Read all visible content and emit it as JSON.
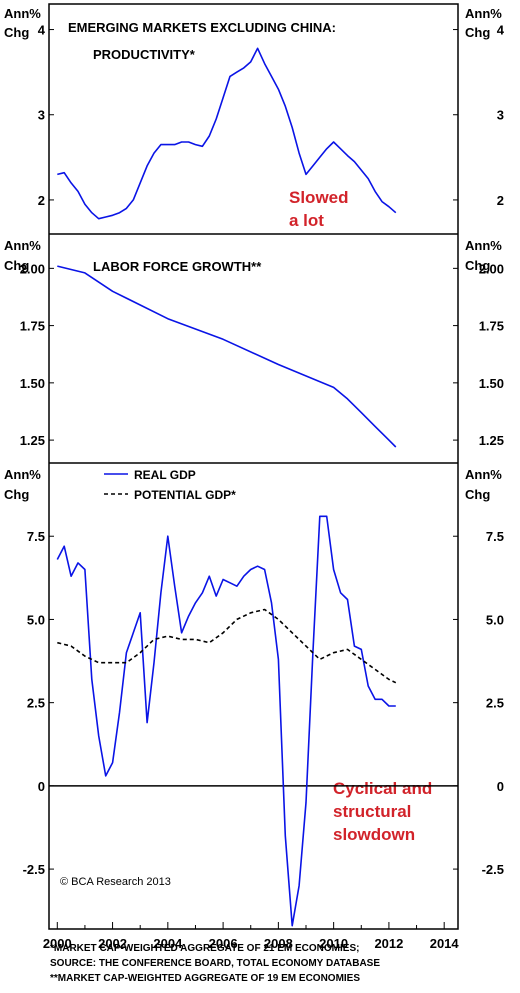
{
  "colors": {
    "series": "#0a14e6",
    "potential": "#000000",
    "annotation": "#d2232a",
    "frame": "#000000"
  },
  "y_unit_line1": "Ann%",
  "y_unit_line2": "Chg",
  "x_tick_labels": [
    "2000",
    "2002",
    "2004",
    "2006",
    "2008",
    "2010",
    "2012",
    "2014"
  ],
  "copyright": "© BCA Research 2013",
  "footnotes": [
    "*MARKET CAP-WEIGHTED AGGREGATE OF 21 EM ECONOMIES;",
    "SOURCE: THE CONFERENCE BOARD, TOTAL ECONOMY DATABASE",
    "**MARKET CAP-WEIGHTED AGGREGATE OF 19 EM ECONOMIES"
  ],
  "chart_data": [
    {
      "type": "line",
      "title": "EMERGING MARKETS EXCLUDING CHINA:",
      "subtitle": "PRODUCTIVITY*",
      "annotation": [
        "Slowed",
        "a lot"
      ],
      "ylim": [
        1.6,
        4.3
      ],
      "yticks": [
        2,
        3,
        4
      ],
      "ytick_labels": [
        "2",
        "3",
        "4"
      ],
      "xlim": [
        1999.7,
        2014.5
      ],
      "grid": false,
      "series": [
        {
          "x": [
            2000.0,
            2000.25,
            2000.5,
            2000.75,
            2001.0,
            2001.25,
            2001.5,
            2001.75,
            2002.0,
            2002.25,
            2002.5,
            2002.75,
            2003.0,
            2003.25,
            2003.5,
            2003.75,
            2004.0,
            2004.25,
            2004.5,
            2004.75,
            2005.0,
            2005.25,
            2005.5,
            2005.75,
            2006.0,
            2006.25,
            2006.5,
            2006.75,
            2007.0,
            2007.25,
            2007.5,
            2007.75,
            2008.0,
            2008.25,
            2008.5,
            2008.75,
            2009.0,
            2009.25,
            2009.5,
            2009.75,
            2010.0,
            2010.25,
            2010.5,
            2010.75,
            2011.0,
            2011.25,
            2011.5,
            2011.75,
            2012.0,
            2012.25
          ],
          "values": [
            2.3,
            2.32,
            2.2,
            2.1,
            1.95,
            1.85,
            1.78,
            1.8,
            1.82,
            1.85,
            1.9,
            2.0,
            2.2,
            2.4,
            2.55,
            2.65,
            2.65,
            2.65,
            2.68,
            2.68,
            2.65,
            2.63,
            2.75,
            2.95,
            3.2,
            3.45,
            3.5,
            3.55,
            3.62,
            3.78,
            3.6,
            3.45,
            3.3,
            3.1,
            2.85,
            2.55,
            2.3,
            2.4,
            2.5,
            2.6,
            2.68,
            2.6,
            2.52,
            2.45,
            2.35,
            2.25,
            2.1,
            1.98,
            1.92,
            1.85
          ]
        }
      ]
    },
    {
      "type": "line",
      "title": "LABOR FORCE GROWTH**",
      "ylim": [
        1.15,
        2.15
      ],
      "yticks": [
        1.25,
        1.5,
        1.75,
        2.0
      ],
      "ytick_labels": [
        "1.25",
        "1.50",
        "1.75",
        "2.00"
      ],
      "xlim": [
        1999.7,
        2014.5
      ],
      "grid": false,
      "series": [
        {
          "x": [
            2000.0,
            2001.0,
            2002.0,
            2004.0,
            2006.0,
            2008.0,
            2010.0,
            2010.5,
            2011.0,
            2011.5,
            2012.0,
            2012.25
          ],
          "values": [
            2.01,
            1.98,
            1.9,
            1.78,
            1.69,
            1.58,
            1.48,
            1.43,
            1.37,
            1.31,
            1.25,
            1.22
          ]
        }
      ]
    },
    {
      "type": "line",
      "ylim": [
        -4.3,
        9.7
      ],
      "yticks": [
        -2.5,
        0,
        2.5,
        5.0,
        7.5
      ],
      "ytick_labels": [
        "-2.5",
        "0",
        "2.5",
        "5.0",
        "7.5"
      ],
      "xlim": [
        1999.7,
        2014.5
      ],
      "grid": false,
      "annotation": [
        "Cyclical and",
        "structural",
        "slowdown"
      ],
      "legend_position": "top-left",
      "series": [
        {
          "name": "REAL GDP",
          "style": "solid",
          "x": [
            2000.0,
            2000.25,
            2000.5,
            2000.75,
            2001.0,
            2001.25,
            2001.5,
            2001.75,
            2002.0,
            2002.25,
            2002.5,
            2002.75,
            2003.0,
            2003.25,
            2003.5,
            2003.75,
            2004.0,
            2004.25,
            2004.5,
            2004.75,
            2005.0,
            2005.25,
            2005.5,
            2005.75,
            2006.0,
            2006.25,
            2006.5,
            2006.75,
            2007.0,
            2007.25,
            2007.5,
            2007.75,
            2008.0,
            2008.25,
            2008.5,
            2008.75,
            2009.0,
            2009.25,
            2009.5,
            2009.75,
            2010.0,
            2010.25,
            2010.5,
            2010.75,
            2011.0,
            2011.25,
            2011.5,
            2011.75,
            2012.0,
            2012.25
          ],
          "values": [
            6.8,
            7.2,
            6.3,
            6.7,
            6.5,
            3.2,
            1.5,
            0.3,
            0.7,
            2.2,
            4.0,
            4.6,
            5.2,
            1.9,
            3.7,
            5.8,
            7.5,
            6.0,
            4.6,
            5.1,
            5.5,
            5.8,
            6.3,
            5.7,
            6.2,
            6.1,
            6.0,
            6.3,
            6.5,
            6.6,
            6.5,
            5.5,
            3.8,
            -1.5,
            -4.2,
            -3.0,
            -0.5,
            4.0,
            8.1,
            8.1,
            6.5,
            5.8,
            5.6,
            4.2,
            4.1,
            3.0,
            2.6,
            2.6,
            2.4,
            2.4
          ]
        },
        {
          "name": "POTENTIAL GDP*",
          "style": "dashed",
          "x": [
            2000.0,
            2000.5,
            2001.0,
            2001.5,
            2002.0,
            2002.5,
            2003.0,
            2003.5,
            2004.0,
            2004.5,
            2005.0,
            2005.5,
            2006.0,
            2006.5,
            2007.0,
            2007.5,
            2008.0,
            2008.5,
            2009.0,
            2009.5,
            2010.0,
            2010.5,
            2011.0,
            2011.5,
            2012.0,
            2012.25
          ],
          "values": [
            4.3,
            4.2,
            3.9,
            3.7,
            3.7,
            3.7,
            4.0,
            4.4,
            4.5,
            4.4,
            4.4,
            4.3,
            4.6,
            5.0,
            5.2,
            5.3,
            5.0,
            4.6,
            4.2,
            3.8,
            4.0,
            4.1,
            3.8,
            3.5,
            3.2,
            3.1
          ]
        }
      ]
    }
  ]
}
